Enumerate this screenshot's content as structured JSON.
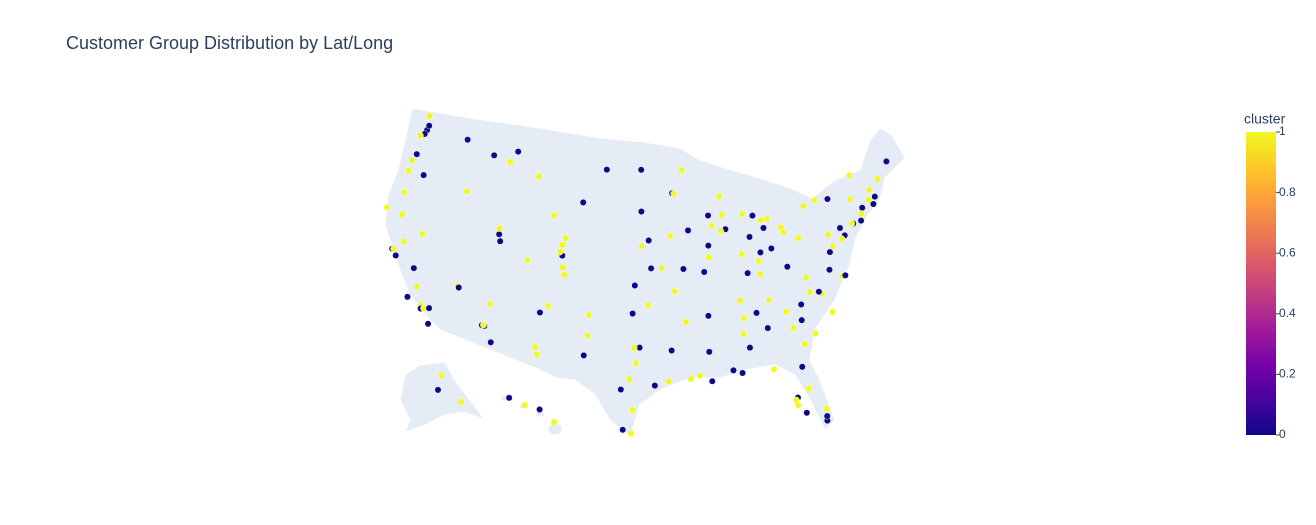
{
  "chart_data": {
    "type": "scattergeo",
    "title": "Customer Group Distribution by Lat/Long",
    "scope": "usa",
    "lat": [
      47.6,
      47.25,
      47.98,
      48.75,
      47.04,
      47.66,
      45.52,
      44.94,
      44.05,
      42.33,
      43.62,
      44.06,
      46.87,
      45.78,
      46.6,
      47.5,
      42.87,
      41.14,
      40.76,
      40.23,
      41.22,
      39.74,
      38.83,
      40.01,
      40.58,
      38.25,
      39.06,
      35.08,
      35.69,
      32.32,
      31.76,
      33.45,
      33.42,
      32.22,
      33.49,
      35.2,
      36.17,
      36.04,
      39.53,
      38.58,
      37.77,
      37.8,
      37.34,
      36.74,
      35.37,
      34.42,
      34.05,
      33.77,
      33.84,
      33.95,
      32.72,
      40.59,
      40.8,
      61.22,
      64.84,
      58.3,
      21.31,
      19.72,
      20.89,
      21.98,
      32.78,
      32.76,
      30.27,
      29.42,
      29.76,
      27.8,
      25.9,
      26.2,
      33.58,
      35.22,
      32.0,
      31.55,
      30.08,
      35.47,
      36.15,
      37.69,
      39.1,
      39.05,
      41.26,
      40.81,
      43.55,
      46.88,
      46.81,
      44.08,
      44.98,
      44.95,
      46.79,
      41.59,
      41.98,
      43.04,
      43.07,
      44.51,
      41.88,
      41.75,
      42.27,
      40.69,
      39.78,
      38.63,
      37.21,
      38.95,
      39.77,
      41.08,
      42.33,
      42.96,
      42.73,
      42.28,
      41.65,
      41.5,
      39.96,
      39.1,
      39.76,
      41.08,
      38.25,
      38.04,
      36.16,
      35.15,
      35.96,
      35.05,
      34.75,
      32.3,
      29.95,
      30.45,
      32.53,
      30.22,
      30.69,
      33.52,
      32.37,
      34.73,
      33.75,
      32.08,
      33.47,
      30.44,
      30.33,
      28.54,
      27.95,
      27.77,
      27.34,
      26.64,
      25.76,
      26.12,
      26.71,
      30.42,
      32.78,
      34.0,
      34.85,
      35.23,
      35.78,
      35.99,
      36.07,
      34.23,
      37.54,
      36.85,
      36.85,
      37.27,
      38.9,
      39.29,
      39.95,
      40.44,
      40.27,
      40.6,
      40.71,
      40.74,
      40.79,
      42.65,
      43.05,
      43.16,
      42.89,
      41.76,
      41.31,
      41.82,
      42.36,
      42.26,
      42.99,
      43.66,
      44.8,
      44.48,
      38.35,
      39.74
    ],
    "lon": [
      -122.3,
      -122.44,
      -122.2,
      -122.48,
      -122.9,
      -117.4,
      -122.68,
      -123.03,
      -123.09,
      -122.87,
      -116.2,
      -121.3,
      -113.99,
      -108.5,
      -112.0,
      -111.3,
      -106.3,
      -104.8,
      -111.89,
      -111.66,
      -111.97,
      -104.99,
      -104.82,
      -105.27,
      -105.08,
      -104.6,
      -108.55,
      -106.65,
      -105.94,
      -106.76,
      -106.49,
      -112.07,
      -111.83,
      -110.97,
      -111.93,
      -111.65,
      -115.14,
      -114.98,
      -119.81,
      -121.49,
      -122.42,
      -122.27,
      -121.89,
      -119.79,
      -119.02,
      -119.7,
      -118.24,
      -118.19,
      -117.91,
      -117.4,
      -117.16,
      -122.39,
      -124.16,
      -149.9,
      -147.72,
      -134.42,
      -157.86,
      -155.09,
      -156.47,
      -159.37,
      -96.8,
      -97.33,
      -97.74,
      -98.49,
      -95.37,
      -97.4,
      -97.5,
      -98.23,
      -101.85,
      -101.83,
      -102.08,
      -97.15,
      -94.1,
      -97.52,
      -95.99,
      -97.34,
      -94.58,
      -95.68,
      -95.93,
      -96.7,
      -96.73,
      -96.79,
      -100.78,
      -103.23,
      -93.27,
      -93.09,
      -92.1,
      -93.62,
      -91.67,
      -87.91,
      -89.4,
      -88.01,
      -87.63,
      -88.15,
      -89.09,
      -89.59,
      -89.65,
      -90.2,
      -93.29,
      -92.33,
      -86.16,
      -85.14,
      -83.05,
      -85.67,
      -84.56,
      -83.74,
      -83.54,
      -81.69,
      -83.0,
      -84.51,
      -84.19,
      -81.52,
      -85.76,
      -84.5,
      -86.78,
      -90.05,
      -83.92,
      -85.31,
      -92.29,
      -90.18,
      -90.07,
      -91.19,
      -93.75,
      -92.02,
      -88.04,
      -86.8,
      -86.3,
      -86.59,
      -84.39,
      -81.09,
      -81.97,
      -84.28,
      -81.66,
      -81.38,
      -82.46,
      -82.64,
      -82.53,
      -81.87,
      -80.19,
      -80.14,
      -80.05,
      -87.22,
      -79.93,
      -81.03,
      -82.4,
      -80.84,
      -78.64,
      -78.9,
      -79.79,
      -77.94,
      -77.44,
      -76.29,
      -75.98,
      -79.94,
      -77.04,
      -76.61,
      -75.17,
      -80.0,
      -76.88,
      -75.49,
      -74.01,
      -74.17,
      -73.13,
      -73.75,
      -76.15,
      -77.61,
      -78.88,
      -72.68,
      -72.92,
      -71.41,
      -71.06,
      -71.8,
      -71.46,
      -70.26,
      -68.77,
      -73.21,
      -81.63,
      -75.55
    ],
    "cluster": [
      0,
      0,
      0,
      1,
      1,
      0,
      0,
      1,
      1,
      1,
      1,
      0,
      0,
      1,
      1,
      0,
      1,
      1,
      0,
      0,
      1,
      0,
      1,
      1,
      1,
      1,
      1,
      0,
      1,
      1,
      1,
      0,
      0,
      0,
      1,
      1,
      1,
      0,
      1,
      1,
      0,
      1,
      0,
      0,
      1,
      0,
      1,
      0,
      1,
      0,
      0,
      1,
      1,
      0,
      1,
      1,
      1,
      1,
      0,
      0,
      0,
      1,
      1,
      0,
      0,
      1,
      1,
      0,
      1,
      1,
      0,
      1,
      1,
      0,
      1,
      0,
      1,
      0,
      0,
      1,
      0,
      0,
      0,
      0,
      0,
      1,
      1,
      1,
      0,
      1,
      0,
      1,
      0,
      1,
      1,
      0,
      1,
      0,
      1,
      0,
      1,
      0,
      1,
      1,
      0,
      1,
      0,
      1,
      0,
      1,
      0,
      1,
      0,
      1,
      1,
      0,
      1,
      0,
      1,
      0,
      0,
      1,
      0,
      1,
      0,
      1,
      0,
      1,
      0,
      1,
      1,
      1,
      0,
      1,
      0,
      1,
      1,
      0,
      0,
      0,
      1,
      0,
      1,
      0,
      1,
      0,
      1,
      0,
      1,
      1,
      0,
      1,
      0,
      1,
      0,
      1,
      0,
      1,
      1,
      0,
      0,
      1,
      0,
      1,
      0,
      1,
      1,
      0,
      1,
      0,
      0,
      1,
      1,
      1,
      0,
      1,
      0,
      1
    ],
    "colorbar": {
      "title": "cluster",
      "cmin": 0,
      "cmax": 1,
      "ticks": [
        0,
        0.2,
        0.4,
        0.6,
        0.8,
        1
      ]
    },
    "colorscale": [
      "#0d0887",
      "#46039f",
      "#7201a8",
      "#9c179e",
      "#bd3786",
      "#d8576b",
      "#ed7953",
      "#fb9f3a",
      "#fdca26",
      "#f0f921"
    ]
  }
}
